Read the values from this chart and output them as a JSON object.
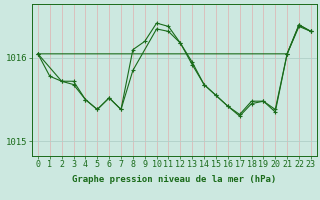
{
  "title": "Graphe pression niveau de la mer (hPa)",
  "bg_color": "#cce8e0",
  "plot_bg_color": "#cce8e0",
  "line_color": "#1a6b1a",
  "grid_color_h": "#b0d0c8",
  "grid_color_v": "#e0b0b0",
  "ylim": [
    1014.82,
    1016.65
  ],
  "yticks": [
    1015.0,
    1016.0
  ],
  "xlim": [
    -0.5,
    23.5
  ],
  "xticks": [
    0,
    1,
    2,
    3,
    4,
    5,
    6,
    7,
    8,
    9,
    10,
    11,
    12,
    13,
    14,
    15,
    16,
    17,
    18,
    19,
    20,
    21,
    22,
    23
  ],
  "series1_x": [
    0,
    1,
    2,
    3,
    4,
    5,
    6,
    7,
    8,
    9,
    10,
    11,
    12,
    13,
    14,
    15,
    16,
    17,
    18,
    19,
    20,
    21,
    22,
    23
  ],
  "series1_y": [
    1016.05,
    1015.78,
    1015.72,
    1015.72,
    1015.5,
    1015.38,
    1015.52,
    1015.38,
    1016.1,
    1016.2,
    1016.42,
    1016.38,
    1016.18,
    1015.92,
    1015.68,
    1015.55,
    1015.42,
    1015.32,
    1015.48,
    1015.48,
    1015.38,
    1016.05,
    1016.38,
    1016.32
  ],
  "series2_x": [
    0,
    2,
    3,
    4,
    5,
    6,
    7,
    8,
    10,
    11,
    12,
    13,
    14,
    15,
    16,
    17,
    18,
    19,
    20,
    21,
    22,
    23
  ],
  "series2_y": [
    1016.05,
    1015.72,
    1015.68,
    1015.5,
    1015.38,
    1015.52,
    1015.38,
    1015.85,
    1016.35,
    1016.32,
    1016.18,
    1015.95,
    1015.68,
    1015.55,
    1015.42,
    1015.3,
    1015.45,
    1015.48,
    1015.35,
    1016.05,
    1016.4,
    1016.32
  ],
  "series3_x": [
    0,
    21,
    22,
    23
  ],
  "series3_y": [
    1016.05,
    1016.05,
    1016.4,
    1016.32
  ],
  "xlabel_fontsize": 6,
  "ylabel_fontsize": 6.5,
  "title_fontsize": 6.5
}
